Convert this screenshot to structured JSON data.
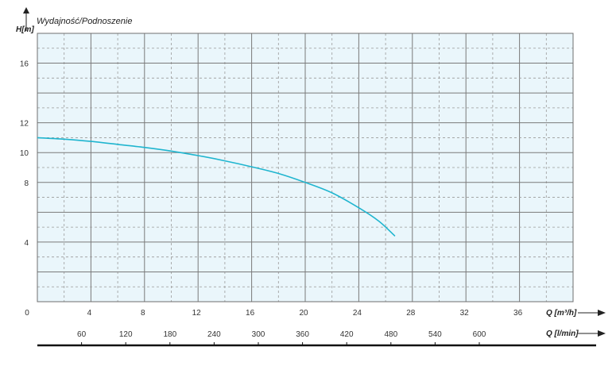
{
  "chart_data": {
    "type": "line",
    "title": "Wydajność/Podnoszenie",
    "ylabel": "H[m]",
    "xlabel": "Q [m³/h]",
    "x2label": "Q [l/min]",
    "ylim": [
      0,
      18
    ],
    "xlim": [
      0,
      40
    ],
    "y_ticks": [
      "4",
      "8",
      "10",
      "12",
      "16"
    ],
    "y_tick_values": [
      4,
      8,
      10,
      12,
      16
    ],
    "x_ticks": [
      "0",
      "4",
      "8",
      "12",
      "16",
      "20",
      "24",
      "28",
      "32",
      "36"
    ],
    "x_tick_values": [
      0,
      4,
      8,
      12,
      16,
      20,
      24,
      28,
      32,
      36
    ],
    "x2_ticks": [
      "60",
      "120",
      "180",
      "240",
      "300",
      "360",
      "420",
      "480",
      "540",
      "600"
    ],
    "x2_tick_values": [
      60,
      120,
      180,
      240,
      300,
      360,
      420,
      480,
      540,
      600
    ],
    "grid": true,
    "colors": {
      "curve": "#1fb5cf",
      "plot_bg": "#eaf6fb",
      "grid": "#7a7a7a"
    },
    "series": [
      {
        "name": "",
        "x": [
          0,
          2,
          4,
          6,
          8,
          10,
          12,
          14,
          16,
          18,
          20,
          22,
          24,
          25.5,
          26.7
        ],
        "y": [
          11.0,
          10.9,
          10.75,
          10.55,
          10.35,
          10.1,
          9.8,
          9.45,
          9.05,
          8.6,
          8.0,
          7.3,
          6.3,
          5.4,
          4.4
        ]
      }
    ]
  }
}
